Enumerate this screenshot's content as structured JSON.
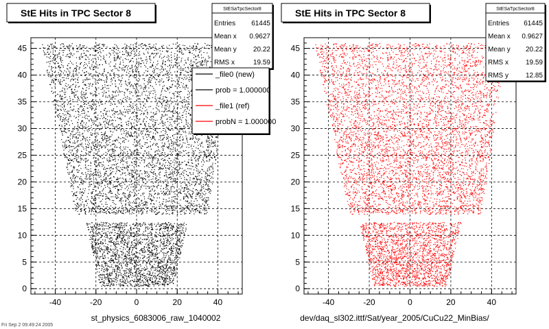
{
  "chart_data": [
    {
      "type": "scatter",
      "title": "StE Hits in TPC Sector 8",
      "xlabel": "st_physics_6083006_raw_1040002",
      "ylabel": "",
      "xlim": [
        -52,
        52
      ],
      "ylim": [
        -1,
        47
      ],
      "xticks": [
        -40,
        -20,
        0,
        20,
        40
      ],
      "yticks": [
        0,
        5,
        10,
        15,
        20,
        25,
        30,
        35,
        40,
        45
      ],
      "color": "#000000",
      "grid": true,
      "stats": {
        "header": "StESaTpcSector8",
        "rows": [
          {
            "label": "Entries",
            "value": "61445"
          },
          {
            "label": "Mean x",
            "value": "0.9627"
          },
          {
            "label": "Mean y",
            "value": "20.22"
          },
          {
            "label": "RMS x",
            "value": "19.59"
          }
        ]
      },
      "legend": {
        "placement": "top-right",
        "entries": [
          {
            "label": "_file0 (new)",
            "color": "#000000"
          },
          {
            "label": "prob = 1.000000",
            "color": "#000000"
          },
          {
            "label": "_file1 (ref)",
            "color": "#ff0000"
          },
          {
            "label": "probN = 1.000000",
            "color": "#ff0000"
          }
        ]
      },
      "series": [
        {
          "regions": [
            {
              "rows": [
                0.5,
                12.5
              ],
              "left_edge": [
                -18,
                -25
              ],
              "right_edge": [
                18,
                25
              ]
            },
            {
              "rows": [
                14,
                46
              ],
              "left_edge": [
                -30,
                -47
              ],
              "right_edge": [
                35,
                47
              ]
            }
          ]
        }
      ]
    },
    {
      "type": "scatter",
      "title": "StE Hits in TPC Sector 8",
      "xlabel": "dev/daq_sl302.ittf/Sat/year_2005/CuCu22_MinBias/",
      "ylabel": "",
      "xlim": [
        -52,
        52
      ],
      "ylim": [
        -1,
        47
      ],
      "xticks": [
        -40,
        -20,
        0,
        20,
        40
      ],
      "yticks": [
        0,
        5,
        10,
        15,
        20,
        25,
        30,
        35,
        40,
        45
      ],
      "color": "#ff0000",
      "grid": true,
      "stats": {
        "header": "StESaTpcSector8",
        "rows": [
          {
            "label": "Entries",
            "value": "61445"
          },
          {
            "label": "Mean x",
            "value": "0.9627"
          },
          {
            "label": "Mean y",
            "value": "20.22"
          },
          {
            "label": "RMS x",
            "value": "19.59"
          },
          {
            "label": "RMS y",
            "value": "12.85"
          }
        ]
      },
      "series": [
        {
          "regions": [
            {
              "rows": [
                0.5,
                12.5
              ],
              "left_edge": [
                -18,
                -25
              ],
              "right_edge": [
                18,
                25
              ]
            },
            {
              "rows": [
                14,
                46
              ],
              "left_edge": [
                -30,
                -47
              ],
              "right_edge": [
                35,
                47
              ]
            }
          ]
        }
      ]
    }
  ],
  "footer_left": "Fri Sep 2 09:49:24 2005"
}
